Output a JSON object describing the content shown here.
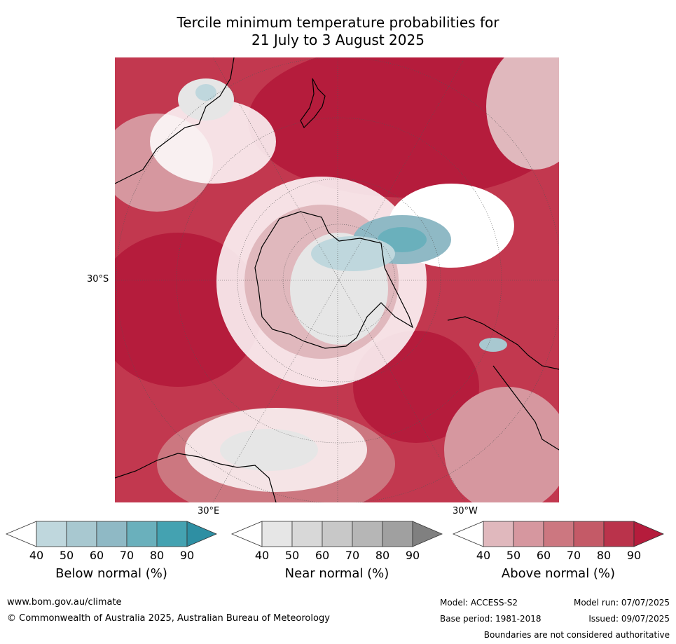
{
  "title": {
    "line1": "Tercile minimum temperature probabilities for",
    "line2": "21 July to 3 August 2025"
  },
  "map": {
    "lat_label": "30°S",
    "lon_label_east": "30°E",
    "lon_label_west": "30°W",
    "ocean_base_color": "#c2384f"
  },
  "colorbars": [
    {
      "title": "Below normal (%)",
      "ticks": [
        "40",
        "50",
        "60",
        "70",
        "80",
        "90"
      ],
      "colors": [
        "#ffffff",
        "#bfd7dd",
        "#a8c8d0",
        "#8fb9c5",
        "#6ab0bc",
        "#44a2b1",
        "#2e8fa3"
      ]
    },
    {
      "title": "Near normal (%)",
      "ticks": [
        "40",
        "50",
        "60",
        "70",
        "80",
        "90"
      ],
      "colors": [
        "#ffffff",
        "#e6e6e6",
        "#d8d8d8",
        "#c8c8c8",
        "#b6b6b6",
        "#a0a0a0",
        "#808080"
      ]
    },
    {
      "title": "Above normal (%)",
      "ticks": [
        "40",
        "50",
        "60",
        "70",
        "80",
        "90"
      ],
      "colors": [
        "#ffffff",
        "#e0b8bd",
        "#d6979f",
        "#cc7780",
        "#c45a67",
        "#ba334b",
        "#b51c3c"
      ]
    }
  ],
  "footer": {
    "website": "www.bom.gov.au/climate",
    "copyright": "© Commonwealth of Australia 2025, Australian Bureau of Meteorology",
    "model": "Model: ACCESS-S2",
    "base_period": "Base period: 1981-2018",
    "model_run": "Model run: 07/07/2025",
    "issued": "Issued: 09/07/2025",
    "disclaimer": "Boundaries are not considered authoritative"
  }
}
